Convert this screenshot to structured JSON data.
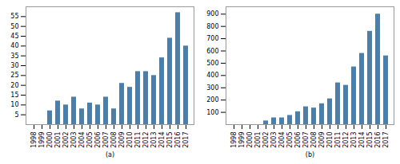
{
  "chart_data": [
    {
      "type": "bar",
      "xlabel": "(a)",
      "categories": [
        "1998",
        "1999",
        "2000",
        "2001",
        "2002",
        "2003",
        "2004",
        "2005",
        "2006",
        "2007",
        "2008",
        "2009",
        "2010",
        "2011",
        "2012",
        "2013",
        "2014",
        "2015",
        "2016",
        "2017"
      ],
      "values": [
        0,
        0,
        7,
        12,
        10,
        14,
        8,
        11,
        10,
        14,
        8,
        21,
        19,
        27,
        27,
        25,
        34,
        44,
        57,
        40
      ],
      "color": "#4d7ea8",
      "ylim": [
        0,
        60
      ],
      "yticks": [
        5,
        10,
        15,
        20,
        25,
        30,
        35,
        40,
        45,
        50,
        55
      ]
    },
    {
      "type": "bar",
      "xlabel": "(b)",
      "categories": [
        "1998",
        "1999",
        "2000",
        "2001",
        "2002",
        "2003",
        "2004",
        "2005",
        "2006",
        "2007",
        "2008",
        "2009",
        "2010",
        "2011",
        "2012",
        "2013",
        "2014",
        "2015",
        "2016",
        "2017"
      ],
      "values": [
        0,
        0,
        0,
        0,
        30,
        55,
        55,
        75,
        105,
        145,
        135,
        170,
        210,
        340,
        320,
        470,
        580,
        760,
        900,
        560
      ],
      "color": "#4d7ea8",
      "ylim": [
        0,
        960
      ],
      "yticks": [
        100,
        200,
        300,
        400,
        500,
        600,
        700,
        800,
        900
      ]
    }
  ]
}
